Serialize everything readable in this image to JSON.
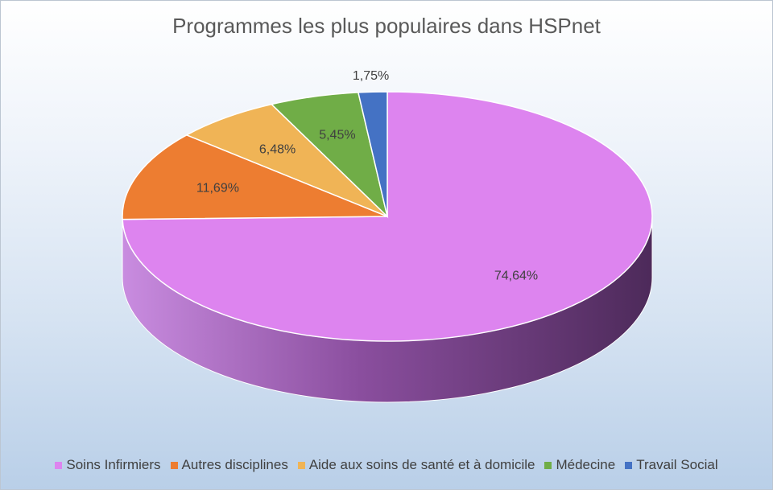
{
  "chart_data": {
    "type": "pie",
    "title": "Programmes les plus populaires dans HSPnet",
    "categories": [
      "Soins Infirmiers",
      "Autres disciplines",
      "Aide aux soins de santé et à domicile",
      "Médecine",
      "Travail Social"
    ],
    "values": [
      74.64,
      11.69,
      6.48,
      5.45,
      1.75
    ],
    "data_labels": [
      "74,64%",
      "11,69%",
      "6,48%",
      "5,45%",
      "1,75%"
    ],
    "colors": [
      "#dd84ef",
      "#ed7d31",
      "#f0b456",
      "#70ad47",
      "#4472c4"
    ],
    "legend_position": "bottom",
    "style": "3d"
  }
}
